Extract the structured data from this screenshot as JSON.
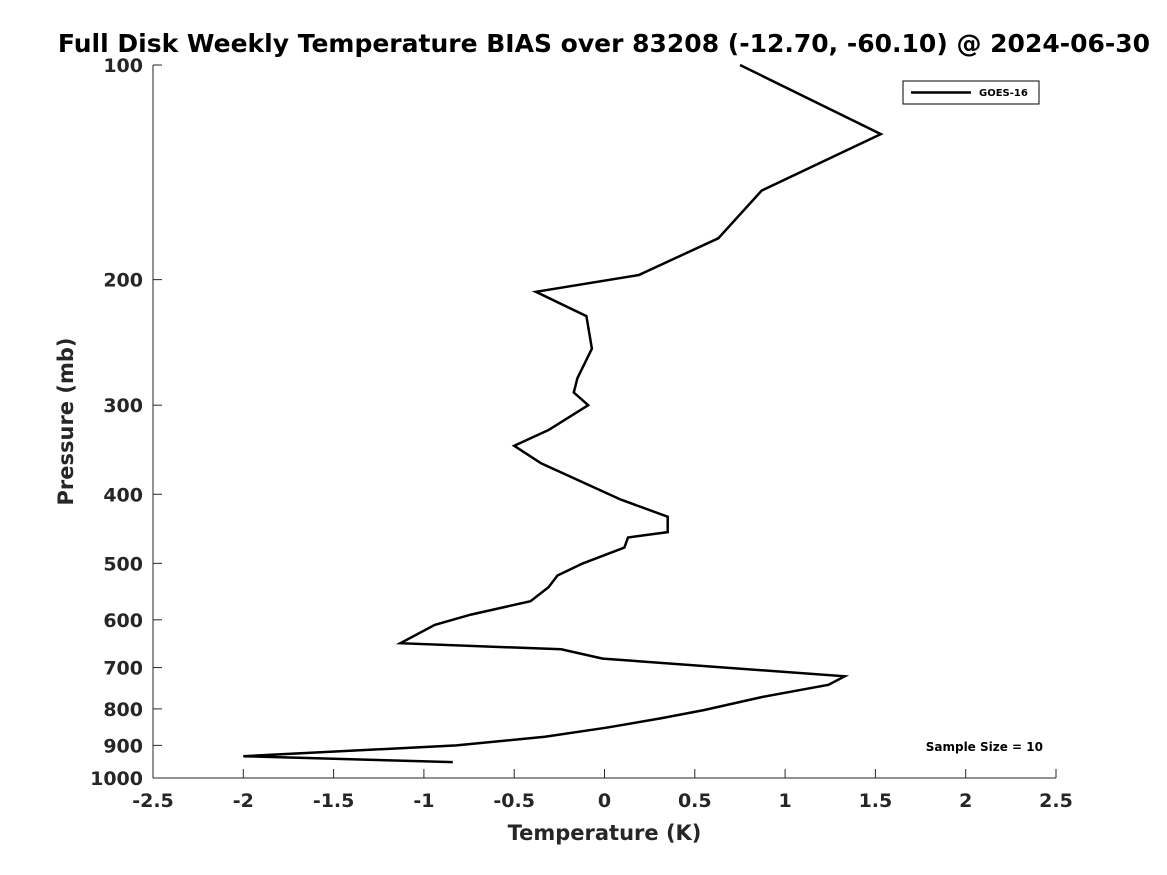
{
  "chart_data": {
    "type": "line",
    "title": "Full Disk Weekly Temperature BIAS over 83208 (-12.70, -60.10) @ 2024-06-30",
    "xlabel": "Temperature (K)",
    "ylabel": "Pressure (mb)",
    "xlim": [
      -2.5,
      2.5
    ],
    "ylim": [
      100,
      1000
    ],
    "y_scale": "log",
    "y_reversed": true,
    "grid": false,
    "legend_position": "top-right",
    "x_ticks": [
      -2.5,
      -2,
      -1.5,
      -1,
      -0.5,
      0,
      0.5,
      1,
      1.5,
      2,
      2.5
    ],
    "x_tick_labels": [
      "-2.5",
      "-2",
      "-1.5",
      "-1",
      "-0.5",
      "0",
      "0.5",
      "1",
      "1.5",
      "2",
      "2.5"
    ],
    "y_ticks": [
      100,
      200,
      300,
      400,
      500,
      600,
      700,
      800,
      900,
      1000
    ],
    "y_tick_labels": [
      "100",
      "200",
      "300",
      "400",
      "500",
      "600",
      "700",
      "800",
      "900",
      "1000"
    ],
    "series": [
      {
        "name": "GOES-16",
        "color": "#000000",
        "x": [
          0.75,
          1.53,
          0.87,
          0.63,
          0.19,
          -0.38,
          -0.1,
          -0.07,
          -0.15,
          -0.17,
          -0.09,
          -0.31,
          -0.5,
          -0.35,
          0.09,
          0.35,
          0.35,
          0.13,
          0.11,
          -0.12,
          -0.26,
          -0.31,
          -0.41,
          -0.74,
          -0.94,
          -1.13,
          -0.24,
          -0.01,
          1.33,
          1.24,
          0.87,
          0.55,
          0.31,
          0.01,
          -0.33,
          -0.82,
          -2.0,
          -0.84
        ],
        "y": [
          100,
          125,
          150,
          175,
          197,
          208,
          225,
          250,
          275,
          288,
          300,
          325,
          342,
          362,
          407,
          430,
          452,
          460,
          475,
          500,
          520,
          540,
          565,
          590,
          610,
          647,
          660,
          680,
          720,
          740,
          770,
          803,
          825,
          850,
          875,
          900,
          932,
          950
        ]
      }
    ],
    "annotations": [
      {
        "text": "Sample Size = 10"
      }
    ]
  }
}
